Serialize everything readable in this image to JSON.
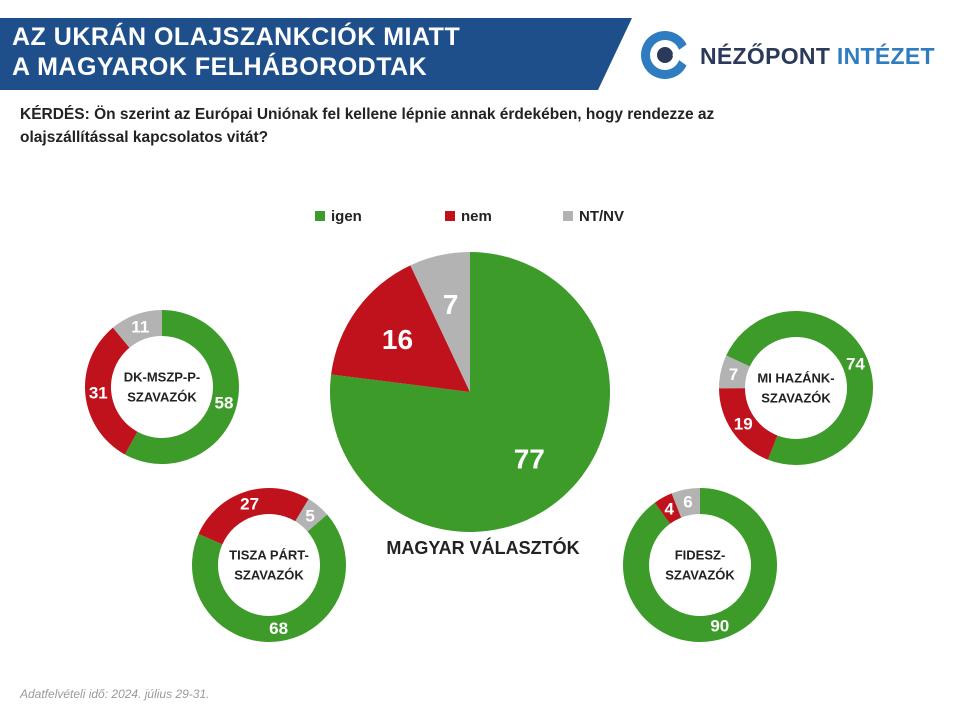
{
  "header": {
    "title_line_1": "AZ UKRÁN OLAJSZANKCIÓK MIATT",
    "title_line_2": "A MAGYAROK FELHÁBORODTAK",
    "logo_word_1": "NÉZŐPONT",
    "logo_word_2": "INTÉZET"
  },
  "question": "KÉRDÉS: Ön szerint az Európai Uniónak fel kellene lépnie annak érdekében, hogy rendezze az olajszállítással kapcsolatos vitát?",
  "footnote": "Adatfelvételi idő: 2024. július 29-31.",
  "colors": {
    "banner": "#1f4f8a",
    "banner_accent": "#2f7dc0",
    "igen": "#3d9b2a",
    "nem": "#c0121c",
    "ntnv": "#b3b3b3"
  },
  "chart_data": [
    {
      "type": "pie",
      "label": "MAGYAR VÁLASZTÓK",
      "legend": [
        "igen",
        "nem",
        "NT/NV"
      ],
      "slices": [
        {
          "name": "igen",
          "value": 77
        },
        {
          "name": "nem",
          "value": 16
        },
        {
          "name": "NT/NV",
          "value": 7
        }
      ]
    },
    {
      "type": "donut",
      "label_lines": [
        "DK-MSZP-P-",
        "SZAVAZÓK"
      ],
      "slices": [
        {
          "name": "igen",
          "value": 58
        },
        {
          "name": "nem",
          "value": 31
        },
        {
          "name": "NT/NV",
          "value": 11
        }
      ]
    },
    {
      "type": "donut",
      "label_lines": [
        "MI HAZÁNK-",
        "SZAVAZÓK"
      ],
      "slices": [
        {
          "name": "igen",
          "value": 74
        },
        {
          "name": "nem",
          "value": 19
        },
        {
          "name": "NT/NV",
          "value": 7
        }
      ]
    },
    {
      "type": "donut",
      "label_lines": [
        "TISZA PÁRT-",
        "SZAVAZÓK"
      ],
      "slices": [
        {
          "name": "igen",
          "value": 68
        },
        {
          "name": "nem",
          "value": 27
        },
        {
          "name": "NT/NV",
          "value": 5
        }
      ]
    },
    {
      "type": "donut",
      "label_lines": [
        "FIDESZ-",
        "SZAVAZÓK"
      ],
      "slices": [
        {
          "name": "igen",
          "value": 90
        },
        {
          "name": "nem",
          "value": 4
        },
        {
          "name": "NT/NV",
          "value": 6
        }
      ]
    }
  ]
}
